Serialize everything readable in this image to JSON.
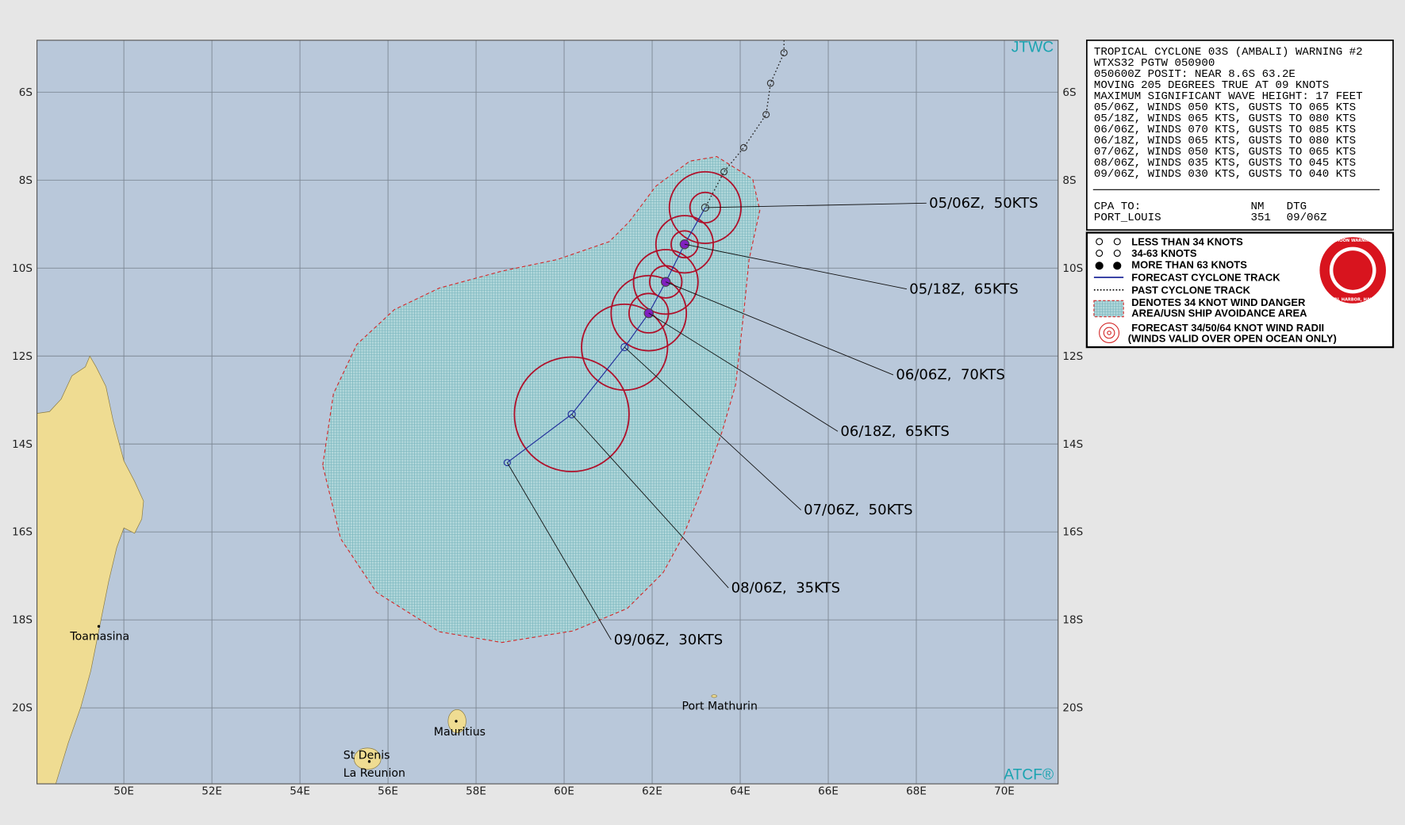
{
  "map": {
    "source": "JTWC",
    "credit": "ATCF®",
    "lat_labels": [
      "6S",
      "8S",
      "10S",
      "12S",
      "14S",
      "16S",
      "18S",
      "20S"
    ],
    "lon_labels": [
      "50E",
      "52E",
      "54E",
      "56E",
      "58E",
      "60E",
      "62E",
      "64E",
      "66E",
      "68E",
      "70E"
    ],
    "places": [
      "Toamasina",
      "Port Mathurin",
      "Mauritius",
      "St Denis",
      "La Reunion"
    ],
    "forecast_labels": [
      "05/06Z,  50KTS",
      "05/18Z,  65KTS",
      "06/06Z,  70KTS",
      "06/18Z,  65KTS",
      "07/06Z,  50KTS",
      "08/06Z,  35KTS",
      "09/06Z,  30KTS"
    ]
  },
  "warning": {
    "lines": [
      "TROPICAL CYCLONE 03S (AMBALI) WARNING #2",
      "WTXS32 PGTW 050900",
      "050600Z POSIT: NEAR 8.6S 63.2E",
      "MOVING 205 DEGREES TRUE AT 09 KNOTS",
      "MAXIMUM SIGNIFICANT WAVE HEIGHT: 17 FEET",
      "05/06Z, WINDS 050 KTS, GUSTS TO 065 KTS",
      "05/18Z, WINDS 065 KTS, GUSTS TO 080 KTS",
      "06/06Z, WINDS 070 KTS, GUSTS TO 085 KTS",
      "06/18Z, WINDS 065 KTS, GUSTS TO 080 KTS",
      "07/06Z, WINDS 050 KTS, GUSTS TO 065 KTS",
      "08/06Z, WINDS 035 KTS, GUSTS TO 045 KTS",
      "09/06Z, WINDS 030 KTS, GUSTS TO 040 KTS"
    ],
    "cpa_header": [
      "CPA TO:",
      "NM",
      "DTG"
    ],
    "cpa_row": [
      "PORT_LOUIS",
      "351",
      "09/06Z"
    ]
  },
  "legend": {
    "items": [
      "LESS THAN 34 KNOTS",
      "34-63 KNOTS",
      "MORE THAN 63 KNOTS",
      "FORECAST CYCLONE TRACK",
      "PAST CYCLONE TRACK",
      "DENOTES 34 KNOT WIND DANGER",
      "AREA/USN SHIP AVOIDANCE AREA",
      "FORECAST 34/50/64 KNOT WIND RADII",
      "(WINDS VALID OVER OPEN OCEAN ONLY)"
    ],
    "logo": [
      "JOINT TYPHOON WARNING CENTER",
      "PEARL HARBOR, HAWAII"
    ]
  }
}
